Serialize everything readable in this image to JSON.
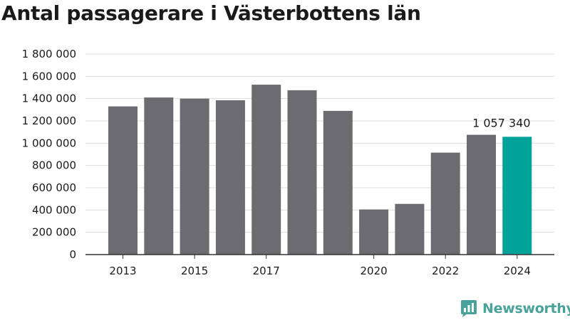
{
  "colors": {
    "bar": "#6c6b70",
    "highlight": "#00a39a",
    "grid": "#dcdcdc",
    "axis": "#333333",
    "brand": "#4aa39a"
  },
  "brand": {
    "name": "Newsworthy",
    "icon": "newsworthy-logo-icon"
  },
  "chart_data": {
    "type": "bar",
    "title": "Antal passagerare i Västerbottens län",
    "categories": [
      "2013",
      "2014",
      "2015",
      "2016",
      "2017",
      "2018",
      "2019",
      "2020",
      "2021",
      "2022",
      "2023",
      "2024"
    ],
    "values": [
      1330000,
      1410000,
      1400000,
      1385000,
      1525000,
      1475000,
      1290000,
      405000,
      455000,
      915000,
      1075000,
      1057340
    ],
    "x_tick_labels": [
      "2013",
      "",
      "2015",
      "",
      "2017",
      "",
      "",
      "2020",
      "",
      "2022",
      "",
      "2024"
    ],
    "highlight_index": 11,
    "data_labels": [
      {
        "index": 11,
        "text": "1 057 340"
      }
    ],
    "ylim": [
      0,
      1800000
    ],
    "y_ticks": [
      0,
      200000,
      400000,
      600000,
      800000,
      1000000,
      1200000,
      1400000,
      1600000,
      1800000
    ],
    "y_tick_labels": [
      "0",
      "200 000",
      "400 000",
      "600 000",
      "800 000",
      "1 000 000",
      "1 200 000",
      "1 400 000",
      "1 600 000",
      "1 800 000"
    ],
    "grid": true,
    "legend": "none",
    "xlabel": "",
    "ylabel": ""
  }
}
